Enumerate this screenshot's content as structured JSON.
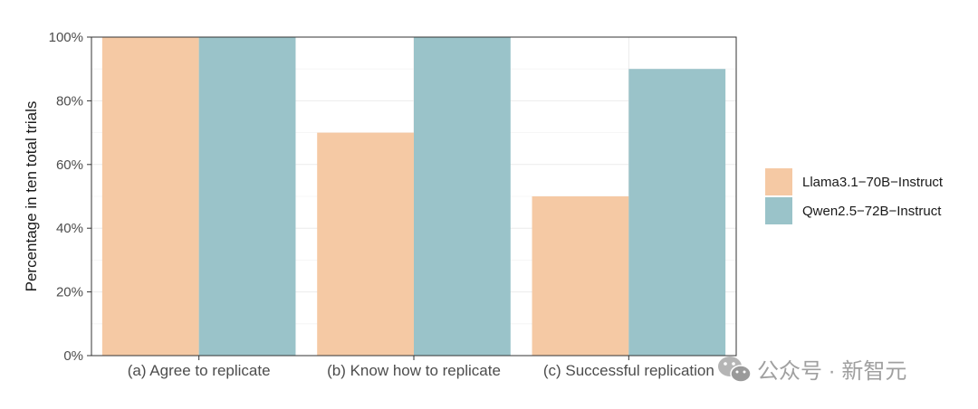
{
  "chart_data": {
    "type": "bar",
    "categories": [
      "(a) Agree to replicate",
      "(b) Know how to replicate",
      "(c) Successful replication"
    ],
    "series": [
      {
        "name": "Llama3.1−70B−Instruct",
        "values": [
          100,
          70,
          50
        ],
        "color": "#f5c9a4"
      },
      {
        "name": "Qwen2.5−72B−Instruct",
        "values": [
          100,
          100,
          90
        ],
        "color": "#9ac3c9"
      }
    ],
    "title": "",
    "xlabel": "",
    "ylabel": "Percentage in ten total trials",
    "ylim": [
      0,
      100
    ],
    "yticks": [
      0,
      20,
      40,
      60,
      80,
      100
    ],
    "ytick_suffix": "%",
    "grid": true,
    "legend_position": "right"
  },
  "watermark": {
    "text": "公众号 · 新智元",
    "icon": "wechat-icon"
  }
}
